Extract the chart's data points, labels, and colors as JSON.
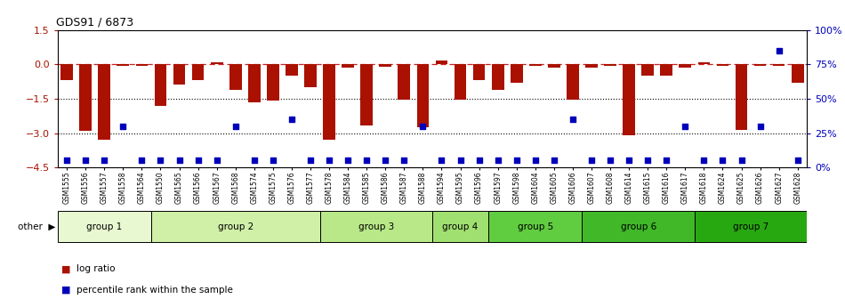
{
  "title": "GDS91 / 6873",
  "samples": [
    "GSM1555",
    "GSM1556",
    "GSM1557",
    "GSM1558",
    "GSM1564",
    "GSM1550",
    "GSM1565",
    "GSM1566",
    "GSM1567",
    "GSM1568",
    "GSM1574",
    "GSM1575",
    "GSM1576",
    "GSM1577",
    "GSM1578",
    "GSM1584",
    "GSM1585",
    "GSM1586",
    "GSM1587",
    "GSM1588",
    "GSM1594",
    "GSM1595",
    "GSM1596",
    "GSM1597",
    "GSM1598",
    "GSM1604",
    "GSM1605",
    "GSM1606",
    "GSM1607",
    "GSM1608",
    "GSM1614",
    "GSM1615",
    "GSM1616",
    "GSM1617",
    "GSM1618",
    "GSM1624",
    "GSM1625",
    "GSM1626",
    "GSM1627",
    "GSM1628"
  ],
  "log_ratio": [
    -0.7,
    -2.9,
    -3.3,
    -0.05,
    -0.05,
    -1.8,
    -0.9,
    -0.7,
    0.07,
    -1.1,
    -1.65,
    -1.6,
    -0.5,
    -1.0,
    -3.3,
    -0.15,
    -2.65,
    -0.1,
    -1.55,
    -2.75,
    0.15,
    -1.55,
    -0.7,
    -1.1,
    -0.8,
    -0.05,
    -0.15,
    -1.55,
    -0.15,
    -0.05,
    -3.1,
    -0.5,
    -0.5,
    -0.15,
    0.07,
    -0.05,
    -2.85,
    -0.05,
    -0.05,
    -0.8
  ],
  "percentile_raw": [
    5,
    5,
    5,
    30,
    5,
    5,
    5,
    5,
    5,
    30,
    5,
    5,
    35,
    5,
    5,
    5,
    5,
    5,
    5,
    30,
    5,
    5,
    5,
    5,
    5,
    5,
    5,
    35,
    5,
    5,
    5,
    5,
    5,
    30,
    5,
    5,
    5,
    30,
    85,
    5
  ],
  "groups": [
    {
      "name": "group 1",
      "start": 0,
      "end": 4
    },
    {
      "name": "group 2",
      "start": 5,
      "end": 13
    },
    {
      "name": "group 3",
      "start": 14,
      "end": 19
    },
    {
      "name": "group 4",
      "start": 20,
      "end": 22
    },
    {
      "name": "group 5",
      "start": 23,
      "end": 27
    },
    {
      "name": "group 6",
      "start": 28,
      "end": 33
    },
    {
      "name": "group 7",
      "start": 34,
      "end": 39
    }
  ],
  "group_colors": [
    "#e8f8d0",
    "#d0f0a8",
    "#b8e888",
    "#a0e070",
    "#60cc40",
    "#40b828",
    "#28a810"
  ],
  "bar_color": "#aa1100",
  "dot_color": "#0000bb",
  "ylim_left": [
    -4.5,
    1.5
  ],
  "ylim_right": [
    0,
    100
  ],
  "yticks_left": [
    1.5,
    0,
    -1.5,
    -3,
    -4.5
  ],
  "yticks_right": [
    100,
    75,
    50,
    25,
    0
  ],
  "hlines": [
    -1.5,
    -3.0
  ],
  "hline_color": "black",
  "zero_line_color": "#cc2222",
  "bar_width": 0.65
}
